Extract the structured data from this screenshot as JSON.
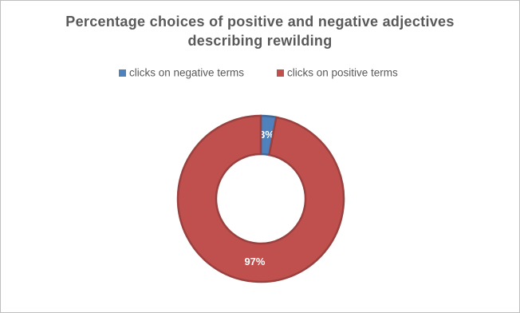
{
  "chart_data": {
    "type": "pie",
    "donut": true,
    "title": "Percentage choices of positive and negative adjectives describing rewilding",
    "categories": [
      "clicks on negative terms",
      "clicks on positive terms"
    ],
    "values": [
      3,
      97
    ],
    "value_labels": [
      "3%",
      "97%"
    ],
    "colors": [
      "#4f81bd",
      "#c0504d"
    ],
    "legend": "top"
  }
}
